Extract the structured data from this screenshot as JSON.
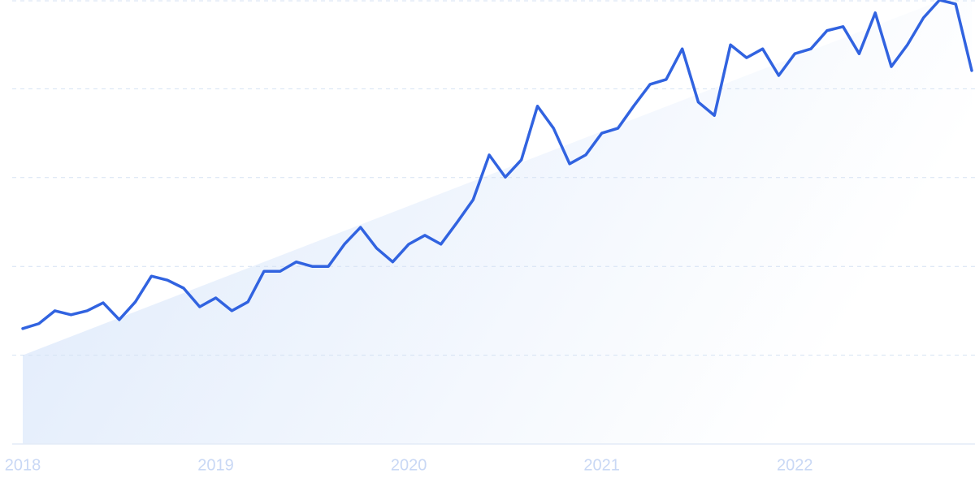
{
  "chart_data": {
    "type": "line",
    "categories": [
      "2018",
      null,
      null,
      null,
      null,
      null,
      null,
      null,
      null,
      null,
      null,
      null,
      "2019",
      null,
      null,
      null,
      null,
      null,
      null,
      null,
      null,
      null,
      null,
      null,
      "2020",
      null,
      null,
      null,
      null,
      null,
      null,
      null,
      null,
      null,
      null,
      null,
      "2021",
      null,
      null,
      null,
      null,
      null,
      null,
      null,
      null,
      null,
      null,
      null,
      "2022",
      null,
      null,
      null,
      null,
      null,
      null,
      null,
      null,
      null,
      null,
      null
    ],
    "series": [
      {
        "color": "#3163e0",
        "values": [
          26.0,
          27.1,
          30.0,
          29.1,
          30.0,
          31.8,
          28.0,
          32.0,
          37.8,
          36.9,
          35.1,
          30.9,
          32.9,
          30.0,
          32.0,
          38.9,
          38.9,
          41.0,
          40.0,
          40.0,
          45.0,
          48.8,
          44.1,
          41.0,
          45.0,
          47.0,
          45.0,
          49.9,
          55.0,
          65.1,
          60.1,
          64.0,
          76.1,
          71.1,
          63.1,
          65.1,
          70.0,
          71.1,
          76.2,
          81.0,
          82.1,
          89.0,
          77.0,
          74.0,
          89.9,
          87.0,
          89.0,
          83.0,
          87.9,
          89.0,
          93.1,
          94.0,
          87.9,
          97.1,
          85.0,
          89.9,
          96.0,
          100,
          99.1,
          84.1
        ]
      }
    ],
    "trend": [
      20,
      102.6
    ],
    "trend_color": "#dde9fb",
    "ylim": [
      0,
      100
    ],
    "yticks": [
      0,
      20,
      40,
      60,
      80,
      100
    ],
    "grid": true
  }
}
